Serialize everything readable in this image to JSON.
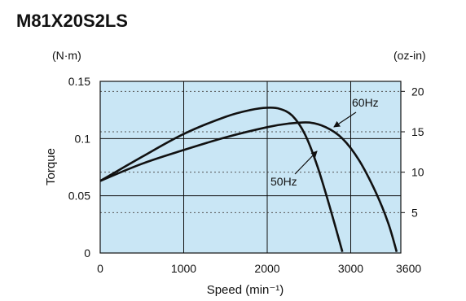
{
  "chart_data": {
    "type": "line",
    "title": "M81X20S2LS",
    "xlabel": "Speed (min⁻¹)",
    "ylabel": "Torque",
    "left_unit": "(N·m)",
    "right_unit": "(oz-in)",
    "xlim": [
      0,
      3600
    ],
    "ylim": [
      0,
      0.15
    ],
    "x_ticks": [
      {
        "value": 0,
        "label": "0"
      },
      {
        "value": 1000,
        "label": "1000"
      },
      {
        "value": 2000,
        "label": "2000"
      },
      {
        "value": 3000,
        "label": "3000"
      },
      {
        "value": 3600,
        "label": "3600"
      }
    ],
    "y_ticks": [
      {
        "value": 0,
        "label": "0"
      },
      {
        "value": 0.05,
        "label": "0.05"
      },
      {
        "value": 0.1,
        "label": "0.1"
      },
      {
        "value": 0.15,
        "label": "0.15"
      }
    ],
    "right_ticks": [
      {
        "value": 5,
        "label": "5"
      },
      {
        "value": 10,
        "label": "10"
      },
      {
        "value": 15,
        "label": "15"
      },
      {
        "value": 20,
        "label": "20"
      }
    ],
    "right_unit_per_left": 141.6,
    "grid": true,
    "background_color": "#c9e6f5",
    "line_color": "#111111",
    "series": [
      {
        "name": "50Hz",
        "x": [
          0,
          500,
          1000,
          1500,
          1800,
          2000,
          2150,
          2300,
          2450,
          2600,
          2750,
          2900
        ],
        "y": [
          0.063,
          0.084,
          0.104,
          0.119,
          0.125,
          0.127,
          0.126,
          0.12,
          0.104,
          0.076,
          0.04,
          0.001
        ]
      },
      {
        "name": "60Hz",
        "x": [
          0,
          500,
          1000,
          1500,
          2000,
          2250,
          2500,
          2700,
          2900,
          3100,
          3300,
          3450,
          3550
        ],
        "y": [
          0.063,
          0.078,
          0.09,
          0.101,
          0.11,
          0.113,
          0.114,
          0.11,
          0.1,
          0.081,
          0.053,
          0.026,
          0.001
        ]
      }
    ]
  }
}
